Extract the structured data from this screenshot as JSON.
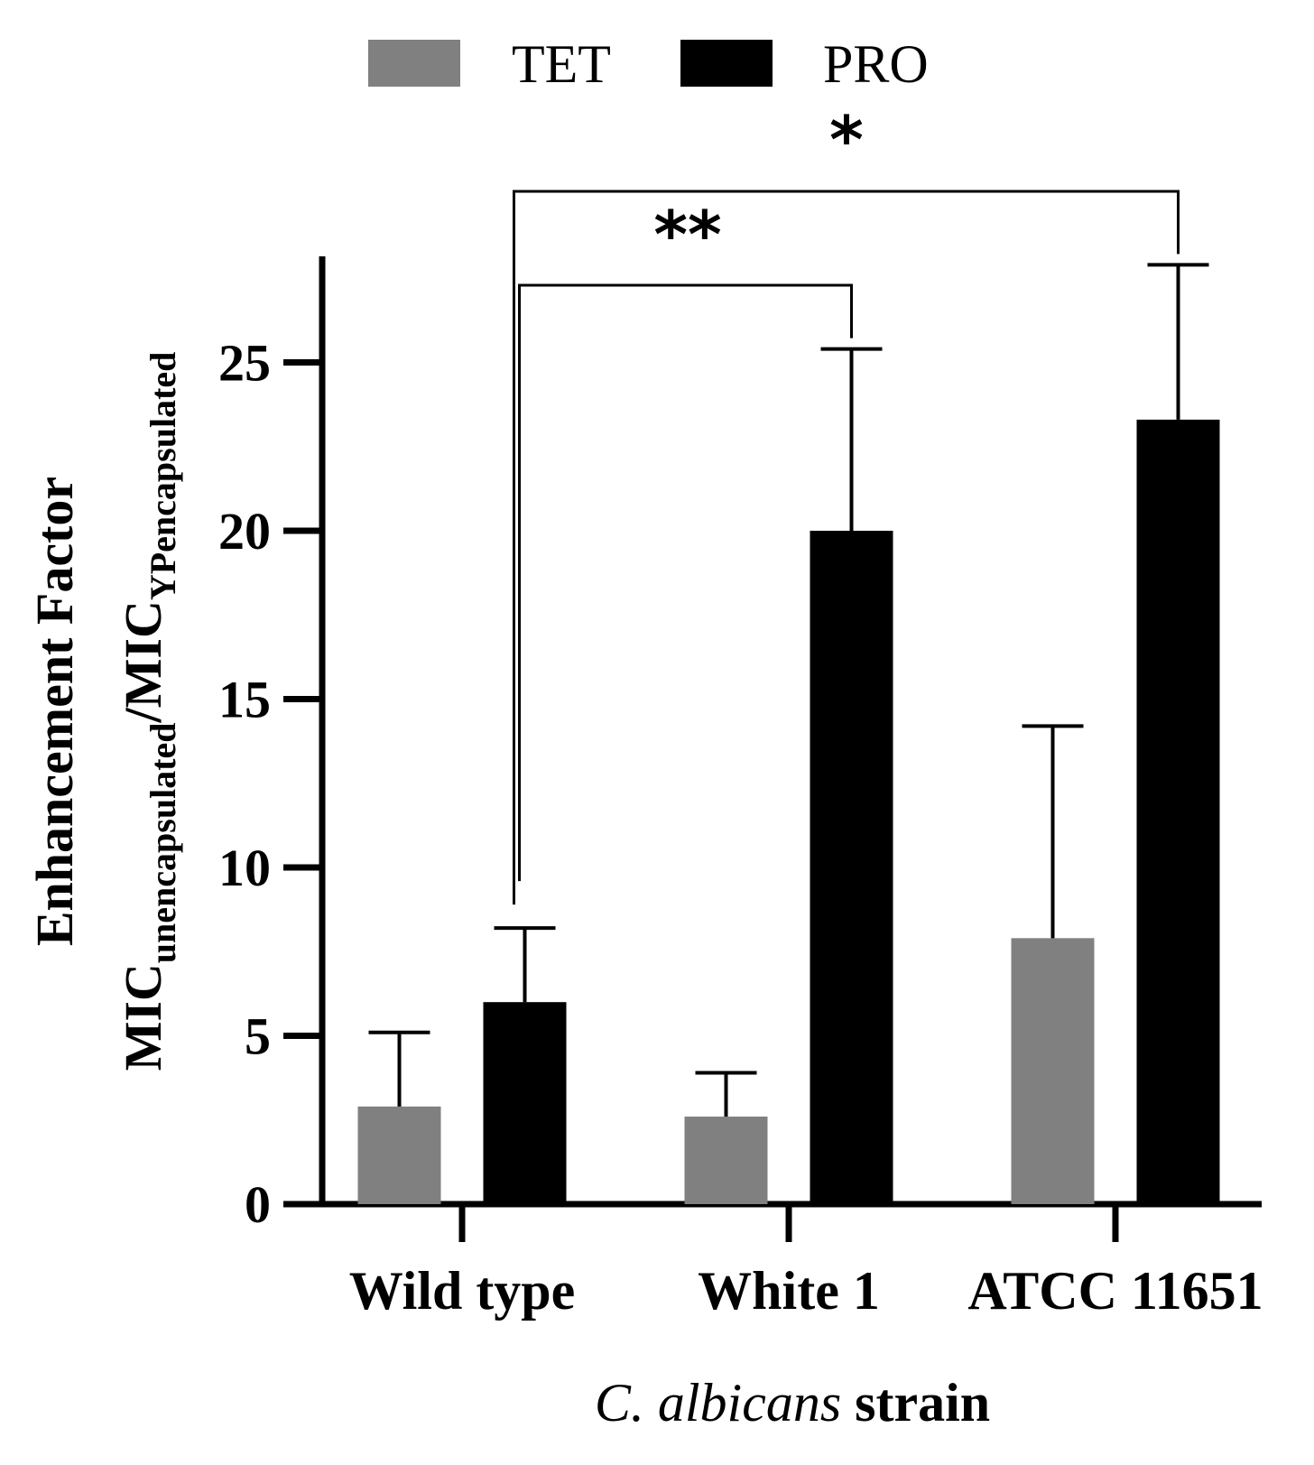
{
  "chart_data": {
    "type": "bar",
    "title": "",
    "xlabel_italic": "C. albicans",
    "xlabel_rest": " strain",
    "ylabel": {
      "line1": "Enhancement  Factor",
      "mic": "MIC",
      "sub1": "unencapsulated",
      "slash": "/",
      "sub2": "YPencapsulated"
    },
    "categories": [
      "Wild type",
      "White 1",
      "ATCC 11651"
    ],
    "ylim": [
      0,
      28
    ],
    "yticks": [
      0,
      5,
      10,
      15,
      20,
      25
    ],
    "ytick_labels": [
      "0",
      "5",
      "10",
      "15",
      "20",
      "25"
    ],
    "legend_position": "top-center",
    "series": [
      {
        "name": "TET",
        "color": "#808080",
        "values": [
          2.9,
          2.6,
          7.9
        ],
        "errors": [
          2.2,
          1.3,
          6.3
        ]
      },
      {
        "name": "PRO",
        "color": "#000000",
        "values": [
          6.0,
          20.0,
          23.3
        ],
        "errors": [
          2.2,
          5.4,
          4.6
        ]
      }
    ],
    "significance": [
      {
        "label": "**",
        "from": "Wild type PRO",
        "to": "White 1 PRO"
      },
      {
        "label": "*",
        "from": "Wild type PRO",
        "to": "ATCC 11651 PRO"
      }
    ]
  }
}
